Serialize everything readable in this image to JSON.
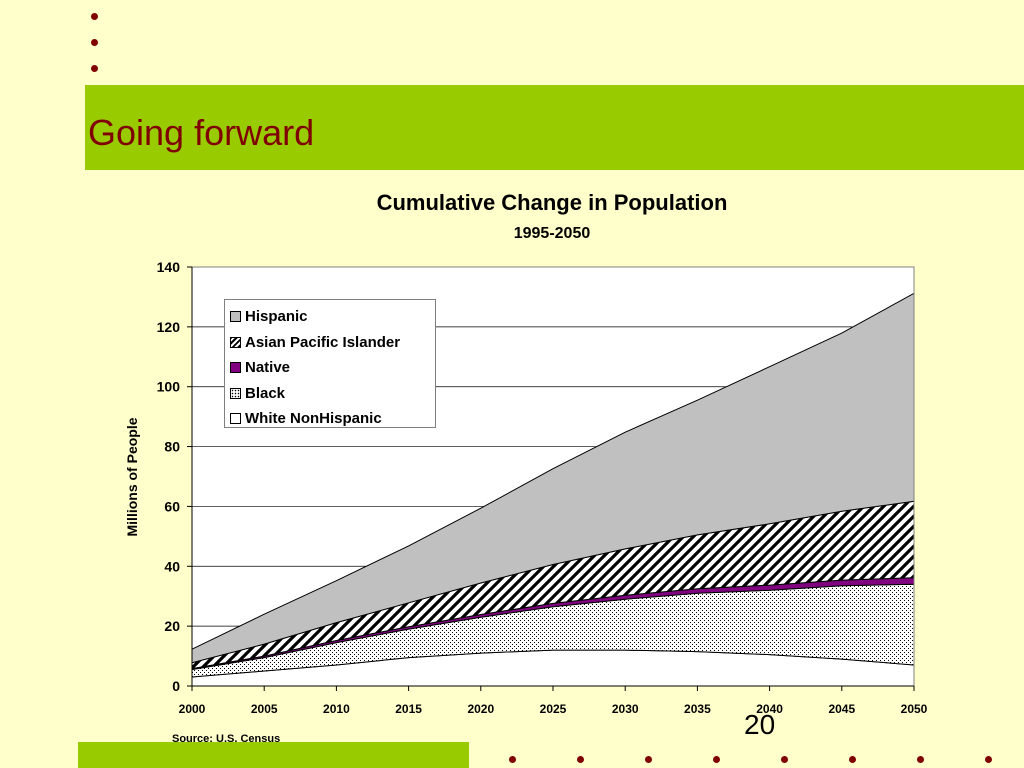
{
  "slide": {
    "title": "Going forward",
    "page_number": "20",
    "source": "Source: U.S. Census"
  },
  "colors": {
    "background": "#ffffcc",
    "band": "#99cc00",
    "title": "#800000",
    "hispanic": "#c0c0c0",
    "native": "#800080",
    "white_nonhispanic": "#ffffff"
  },
  "chart_data": {
    "type": "area",
    "stacked": true,
    "title": "Cumulative Change in Population",
    "subtitle": "1995-2050",
    "xlabel": "",
    "ylabel": "Millions of People",
    "x": [
      2000,
      2005,
      2010,
      2015,
      2020,
      2025,
      2030,
      2035,
      2040,
      2045,
      2050
    ],
    "x_ticks": [
      "2000",
      "2005",
      "2010",
      "2015",
      "2020",
      "2025",
      "2030",
      "2035",
      "2040",
      "2045",
      "2050"
    ],
    "y_ticks": [
      "0",
      "20",
      "40",
      "60",
      "80",
      "100",
      "120",
      "140"
    ],
    "ylim": [
      0,
      140
    ],
    "grid": true,
    "legend_position": "top-left",
    "series": [
      {
        "name": "White NonHispanic",
        "values": [
          3,
          5,
          7,
          9.5,
          11,
          12,
          12,
          11.5,
          10.5,
          9,
          7
        ],
        "pattern": "solid-white"
      },
      {
        "name": "Black",
        "values": [
          2.5,
          4.5,
          7.5,
          9.5,
          12,
          14.5,
          17,
          19.5,
          21.5,
          24.5,
          27
        ],
        "pattern": "dots"
      },
      {
        "name": "Native",
        "values": [
          0.3,
          0.5,
          0.7,
          0.8,
          0.9,
          1.1,
          1.3,
          1.5,
          1.7,
          1.9,
          2.2
        ],
        "pattern": "solid-purple"
      },
      {
        "name": "Asian Pacific Islander",
        "values": [
          2,
          4,
          6,
          8,
          10.5,
          13,
          15.5,
          18,
          20.5,
          23,
          25.5
        ],
        "pattern": "diagonal-stripes"
      },
      {
        "name": "Hispanic",
        "values": [
          4.5,
          10,
          14,
          19,
          25,
          32,
          39,
          45,
          52.5,
          59.5,
          69.5
        ],
        "pattern": "solid-gray"
      }
    ],
    "legend_order": [
      "Hispanic",
      "Asian Pacific Islander",
      "Native",
      "Black",
      "White NonHispanic"
    ]
  }
}
